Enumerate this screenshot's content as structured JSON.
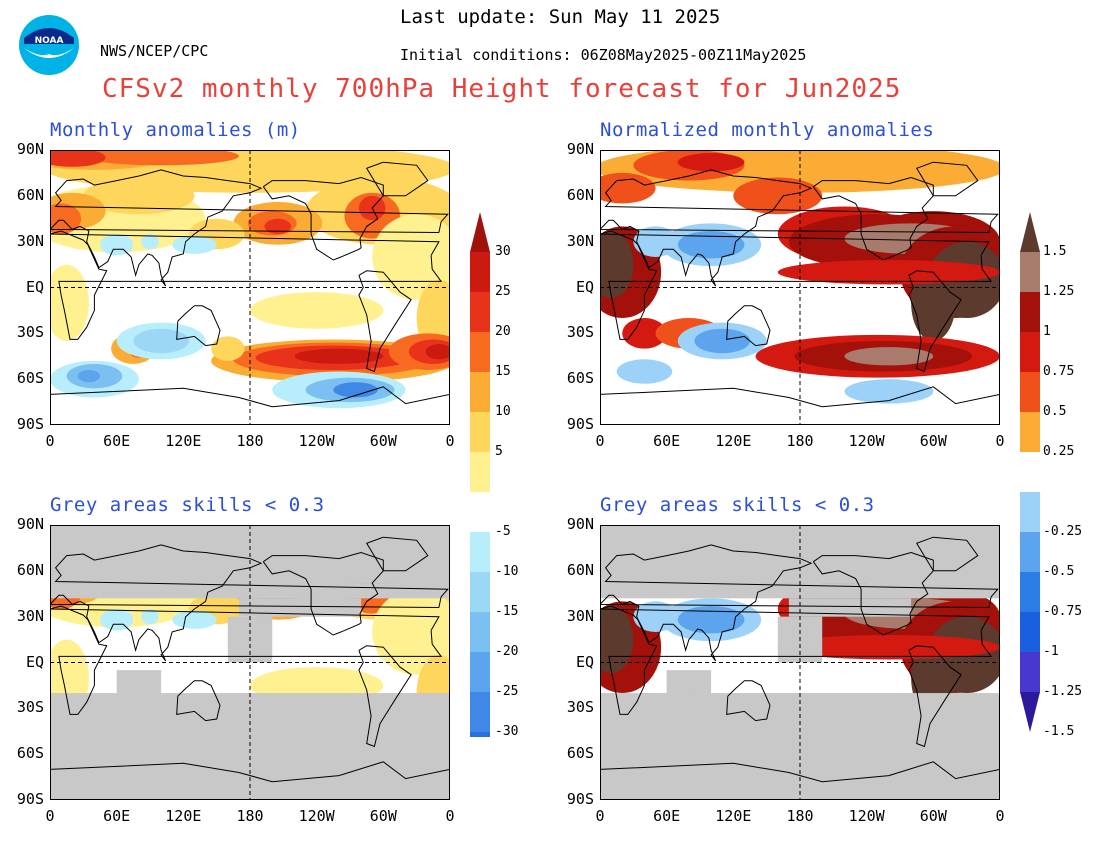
{
  "header": {
    "logo_label": "NOAA",
    "agency": "NWS/NCEP/CPC",
    "last_update": "Last update: Sun May 11 2025",
    "initial_conditions": "Initial conditions: 06Z08May2025-00Z11May2025",
    "title": "CFSv2 monthly 700hPa Height forecast for Jun2025"
  },
  "panels": [
    {
      "id": "tl",
      "title": "Monthly anomalies (m)",
      "skill_masked": false,
      "field": "raw"
    },
    {
      "id": "tr",
      "title": "Normalized monthly anomalies",
      "skill_masked": false,
      "field": "norm"
    },
    {
      "id": "bl",
      "title": "Grey areas skills < 0.3",
      "skill_masked": true,
      "field": "raw"
    },
    {
      "id": "br",
      "title": "Grey areas skills < 0.3",
      "skill_masked": true,
      "field": "norm"
    }
  ],
  "lat_ticks": [
    "90N",
    "60N",
    "30N",
    "EQ",
    "30S",
    "60S",
    "90S"
  ],
  "lon_ticks": [
    "0",
    "60E",
    "120E",
    "180",
    "120W",
    "60W",
    "0"
  ],
  "colorbar_raw": {
    "labels_pos": [
      "30",
      "25",
      "20",
      "15",
      "10",
      "5"
    ],
    "labels_neg": [
      "-5",
      "-10",
      "-15",
      "-20",
      "-25",
      "-30"
    ],
    "colors_pos": [
      "#a0120a",
      "#cc1a10",
      "#e8321a",
      "#f76a1f",
      "#fbac35",
      "#ffd65c",
      "#fff18f"
    ],
    "colors_neg": [
      "#b8eefc",
      "#9cd8f6",
      "#7cc0f2",
      "#5ca4ee",
      "#3f88e6",
      "#2a6ee0",
      "#1f5ad6"
    ]
  },
  "colorbar_norm": {
    "labels_pos": [
      "1.5",
      "1.25",
      "1",
      "0.75",
      "0.5",
      "0.25"
    ],
    "labels_neg": [
      "-0.25",
      "-0.5",
      "-0.75",
      "-1",
      "-1.25",
      "-1.5"
    ],
    "colors_pos": [
      "#5c3a2e",
      "#a87b6c",
      "#a4100a",
      "#d41a10",
      "#f0501a",
      "#fbac35"
    ],
    "colors_neg": [
      "#9cd2f8",
      "#5ca4ee",
      "#2b7ee6",
      "#1a5fe0",
      "#4838cf",
      "#2c1a9c"
    ]
  },
  "colors": {
    "title_red": "#e8413a",
    "panel_title_blue": "#2b4fd9",
    "skill_grey": "#c8c8c8"
  }
}
